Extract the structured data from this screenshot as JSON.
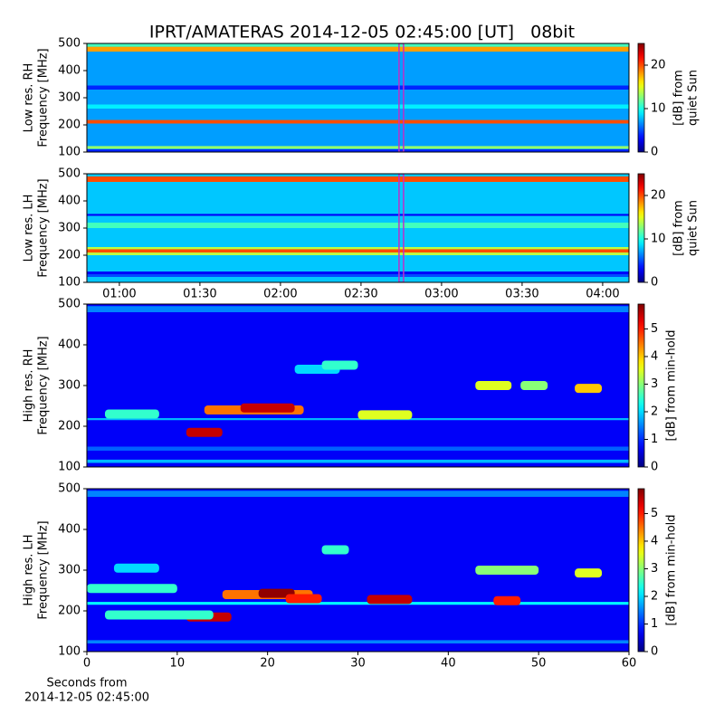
{
  "chart_data": [
    {
      "type": "heatmap",
      "title": "IPRT/AMATERAS 2014-12-05 02:45:00 [UT]   08bit",
      "ylabel": [
        "Low res. RH",
        "Frequency [MHz]"
      ],
      "colorbar_label": [
        "[dB] from",
        "quiet Sun"
      ],
      "colormap": "jet",
      "xlim": [
        47.9,
        249.8
      ],
      "ylim": [
        100,
        500
      ],
      "yticks": [
        100,
        200,
        300,
        400,
        500
      ],
      "clim": [
        0,
        25
      ],
      "cticks": [
        0,
        10,
        20
      ],
      "marker_x": 165,
      "marker_color": "#c030c8",
      "background": 7,
      "bands": [
        [
          100,
          110,
          4
        ],
        [
          112,
          122,
          13
        ],
        [
          205,
          218,
          20
        ],
        [
          260,
          275,
          9
        ],
        [
          330,
          345,
          4
        ],
        [
          470,
          488,
          18
        ],
        [
          488,
          498,
          11
        ]
      ],
      "bursts": []
    },
    {
      "type": "heatmap",
      "ylabel": [
        "Low res. LH",
        "Frequency [MHz]"
      ],
      "colorbar_label": [
        "[dB] from",
        "quiet Sun"
      ],
      "colormap": "jet",
      "xlim": [
        47.9,
        249.8
      ],
      "ylim": [
        100,
        500
      ],
      "yticks": [
        100,
        200,
        300,
        400,
        500
      ],
      "xticks": [
        {
          "value": 60,
          "label": "01:00"
        },
        {
          "value": 90,
          "label": "01:30"
        },
        {
          "value": 120,
          "label": "02:00"
        },
        {
          "value": 150,
          "label": "02:30"
        },
        {
          "value": 180,
          "label": "03:00"
        },
        {
          "value": 210,
          "label": "03:30"
        },
        {
          "value": 240,
          "label": "04:00"
        }
      ],
      "clim": [
        0,
        25
      ],
      "cticks": [
        0,
        10,
        20
      ],
      "marker_x": 165,
      "marker_color": "#c030c8",
      "background": 8,
      "bands": [
        [
          120,
          135,
          5
        ],
        [
          130,
          140,
          3
        ],
        [
          200,
          230,
          14
        ],
        [
          210,
          222,
          20
        ],
        [
          300,
          320,
          11
        ],
        [
          345,
          352,
          3
        ],
        [
          470,
          490,
          20
        ]
      ],
      "bursts": []
    },
    {
      "type": "heatmap",
      "ylabel": [
        "High res. RH",
        "Frequency [MHz]"
      ],
      "colorbar_label": [
        "[dB] from min-hold"
      ],
      "colormap": "jet",
      "xlim": [
        0,
        60
      ],
      "ylim": [
        100,
        500
      ],
      "yticks": [
        100,
        200,
        300,
        400,
        500
      ],
      "clim": [
        0,
        5.9
      ],
      "cticks": [
        0,
        1,
        2,
        3,
        4,
        5
      ],
      "background": 0.7,
      "bands": [
        [
          110,
          118,
          1.8
        ],
        [
          140,
          150,
          1.3
        ],
        [
          215,
          220,
          1.8
        ],
        [
          480,
          495,
          1.5
        ]
      ],
      "bursts": [
        [
          11,
          15,
          185,
          5.5
        ],
        [
          13,
          24,
          240,
          4.5
        ],
        [
          17,
          23,
          245,
          5.5
        ],
        [
          23,
          28,
          340,
          2
        ],
        [
          30,
          36,
          228,
          3.5
        ],
        [
          43,
          47,
          300,
          3.5
        ],
        [
          48,
          51,
          300,
          3
        ],
        [
          54,
          57,
          293,
          4
        ],
        [
          2,
          8,
          230,
          2.5
        ],
        [
          26,
          30,
          350,
          2.5
        ]
      ]
    },
    {
      "type": "heatmap",
      "ylabel": [
        "High res. LH",
        "Frequency [MHz]"
      ],
      "colorbar_label": [
        "[dB] from min-hold"
      ],
      "xlabel": [
        "Seconds from",
        "2014-12-05 02:45:00"
      ],
      "colormap": "jet",
      "xlim": [
        0,
        60
      ],
      "ylim": [
        100,
        500
      ],
      "yticks": [
        100,
        200,
        300,
        400,
        500
      ],
      "xticks": [
        0,
        10,
        20,
        30,
        40,
        50,
        60
      ],
      "clim": [
        0,
        5.9
      ],
      "cticks": [
        0,
        1,
        2,
        3,
        4,
        5
      ],
      "background": 0.7,
      "bands": [
        [
          120,
          128,
          1.5
        ],
        [
          215,
          222,
          2.2
        ],
        [
          480,
          495,
          1.5
        ]
      ],
      "bursts": [
        [
          11,
          16,
          185,
          5.5
        ],
        [
          15,
          25,
          240,
          4.5
        ],
        [
          19,
          23,
          243,
          5.8
        ],
        [
          22,
          26,
          230,
          5
        ],
        [
          31,
          36,
          228,
          5.5
        ],
        [
          45,
          48,
          225,
          5
        ],
        [
          43,
          50,
          300,
          3
        ],
        [
          54,
          57,
          293,
          3.5
        ],
        [
          0,
          10,
          255,
          2.5
        ],
        [
          26,
          29,
          350,
          2.5
        ],
        [
          3,
          8,
          305,
          2
        ],
        [
          2,
          14,
          190,
          2.5
        ]
      ]
    }
  ]
}
